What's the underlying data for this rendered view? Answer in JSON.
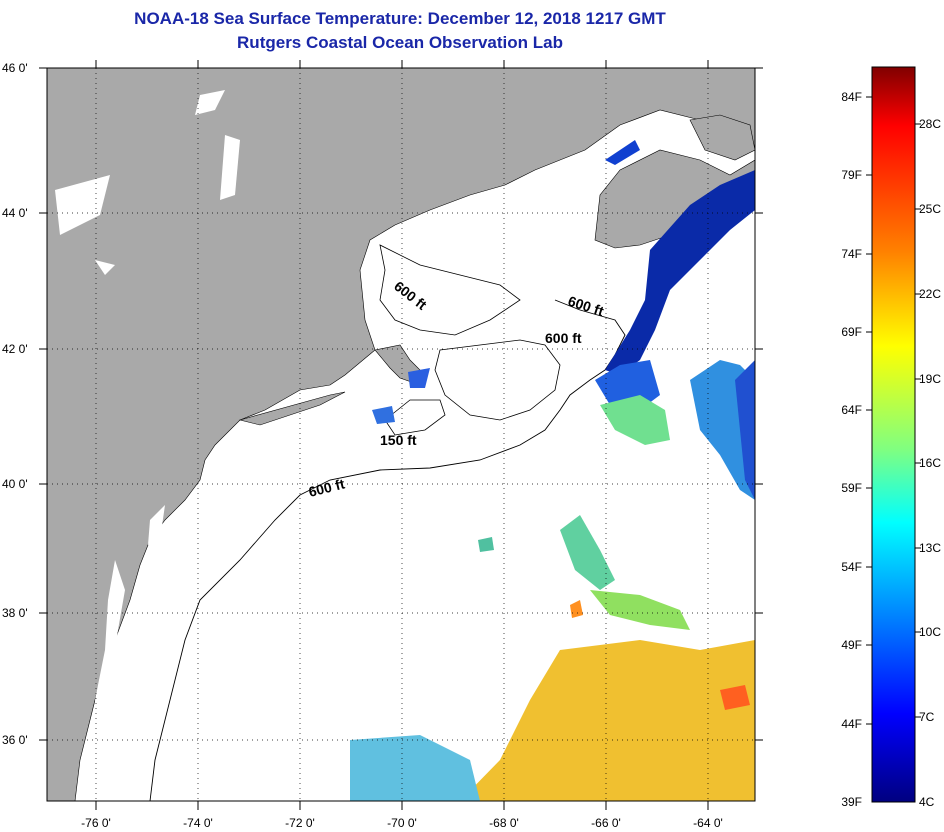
{
  "title": {
    "line1": "NOAA-18 Sea Surface Temperature:  December 12, 2018 1217 GMT",
    "line2": "Rutgers Coastal Ocean Observation Lab"
  },
  "map": {
    "lon_range": [
      -77,
      -63
    ],
    "lat_range": [
      35,
      46
    ],
    "lon_ticks": [
      "-76 0'",
      "-74 0'",
      "-72 0'",
      "-70 0'",
      "-68 0'",
      "-66 0'",
      "-64 0'"
    ],
    "lat_ticks": [
      "46 0'",
      "44 0'",
      "42 0'",
      "40 0'",
      "38 0'",
      "36 0'"
    ],
    "grid": "dotted",
    "land_color": "#a9a9a9",
    "cloud_color": "#ffffff",
    "contour_labels": [
      "600 ft",
      "600 ft",
      "600 ft",
      "600 ft",
      "150 ft"
    ]
  },
  "colorbar": {
    "f_labels": [
      "84F",
      "79F",
      "74F",
      "69F",
      "64F",
      "59F",
      "54F",
      "49F",
      "44F",
      "39F"
    ],
    "c_labels": [
      "28C",
      "25C",
      "22C",
      "19C",
      "16C",
      "13C",
      "10C",
      "7C",
      "4C"
    ],
    "colors": [
      "#800000",
      "#ff0000",
      "#ff8000",
      "#ffff00",
      "#80ff80",
      "#00ffff",
      "#0080ff",
      "#0000ff",
      "#000080"
    ]
  }
}
